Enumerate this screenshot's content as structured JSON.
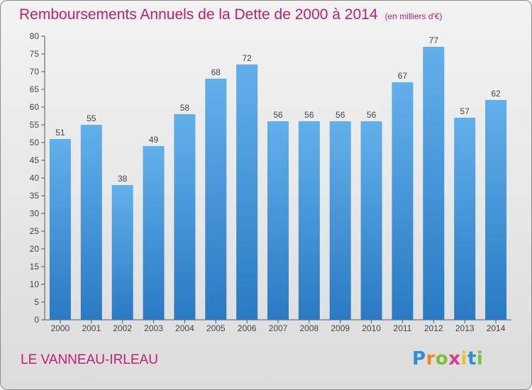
{
  "header": {
    "title": "Remboursements Annuels de la Dette de 2000 à 2014",
    "subtitle": "(en milliers d'€)"
  },
  "footer": {
    "place": "LE VANNEAU-IRLEAU",
    "logo_text": "Proxiti"
  },
  "colors": {
    "title": "#c41e6a",
    "bar_top": "#62b0ea",
    "bar_bottom": "#2a7ac4"
  },
  "chart_data": {
    "type": "bar",
    "categories": [
      "2000",
      "2001",
      "2002",
      "2003",
      "2004",
      "2005",
      "2006",
      "2007",
      "2008",
      "2009",
      "2010",
      "2011",
      "2012",
      "2013",
      "2014"
    ],
    "values": [
      51,
      55,
      38,
      49,
      58,
      68,
      72,
      56,
      56,
      56,
      56,
      67,
      77,
      57,
      62
    ],
    "title": "Remboursements Annuels de la Dette de 2000 à 2014",
    "subtitle": "(en milliers d'€)",
    "xlabel": "",
    "ylabel": "",
    "ylim": [
      0,
      80
    ],
    "yticks": [
      0,
      5,
      10,
      15,
      20,
      25,
      30,
      35,
      40,
      45,
      50,
      55,
      60,
      65,
      70,
      75,
      80
    ],
    "grid": false,
    "legend": "none"
  }
}
